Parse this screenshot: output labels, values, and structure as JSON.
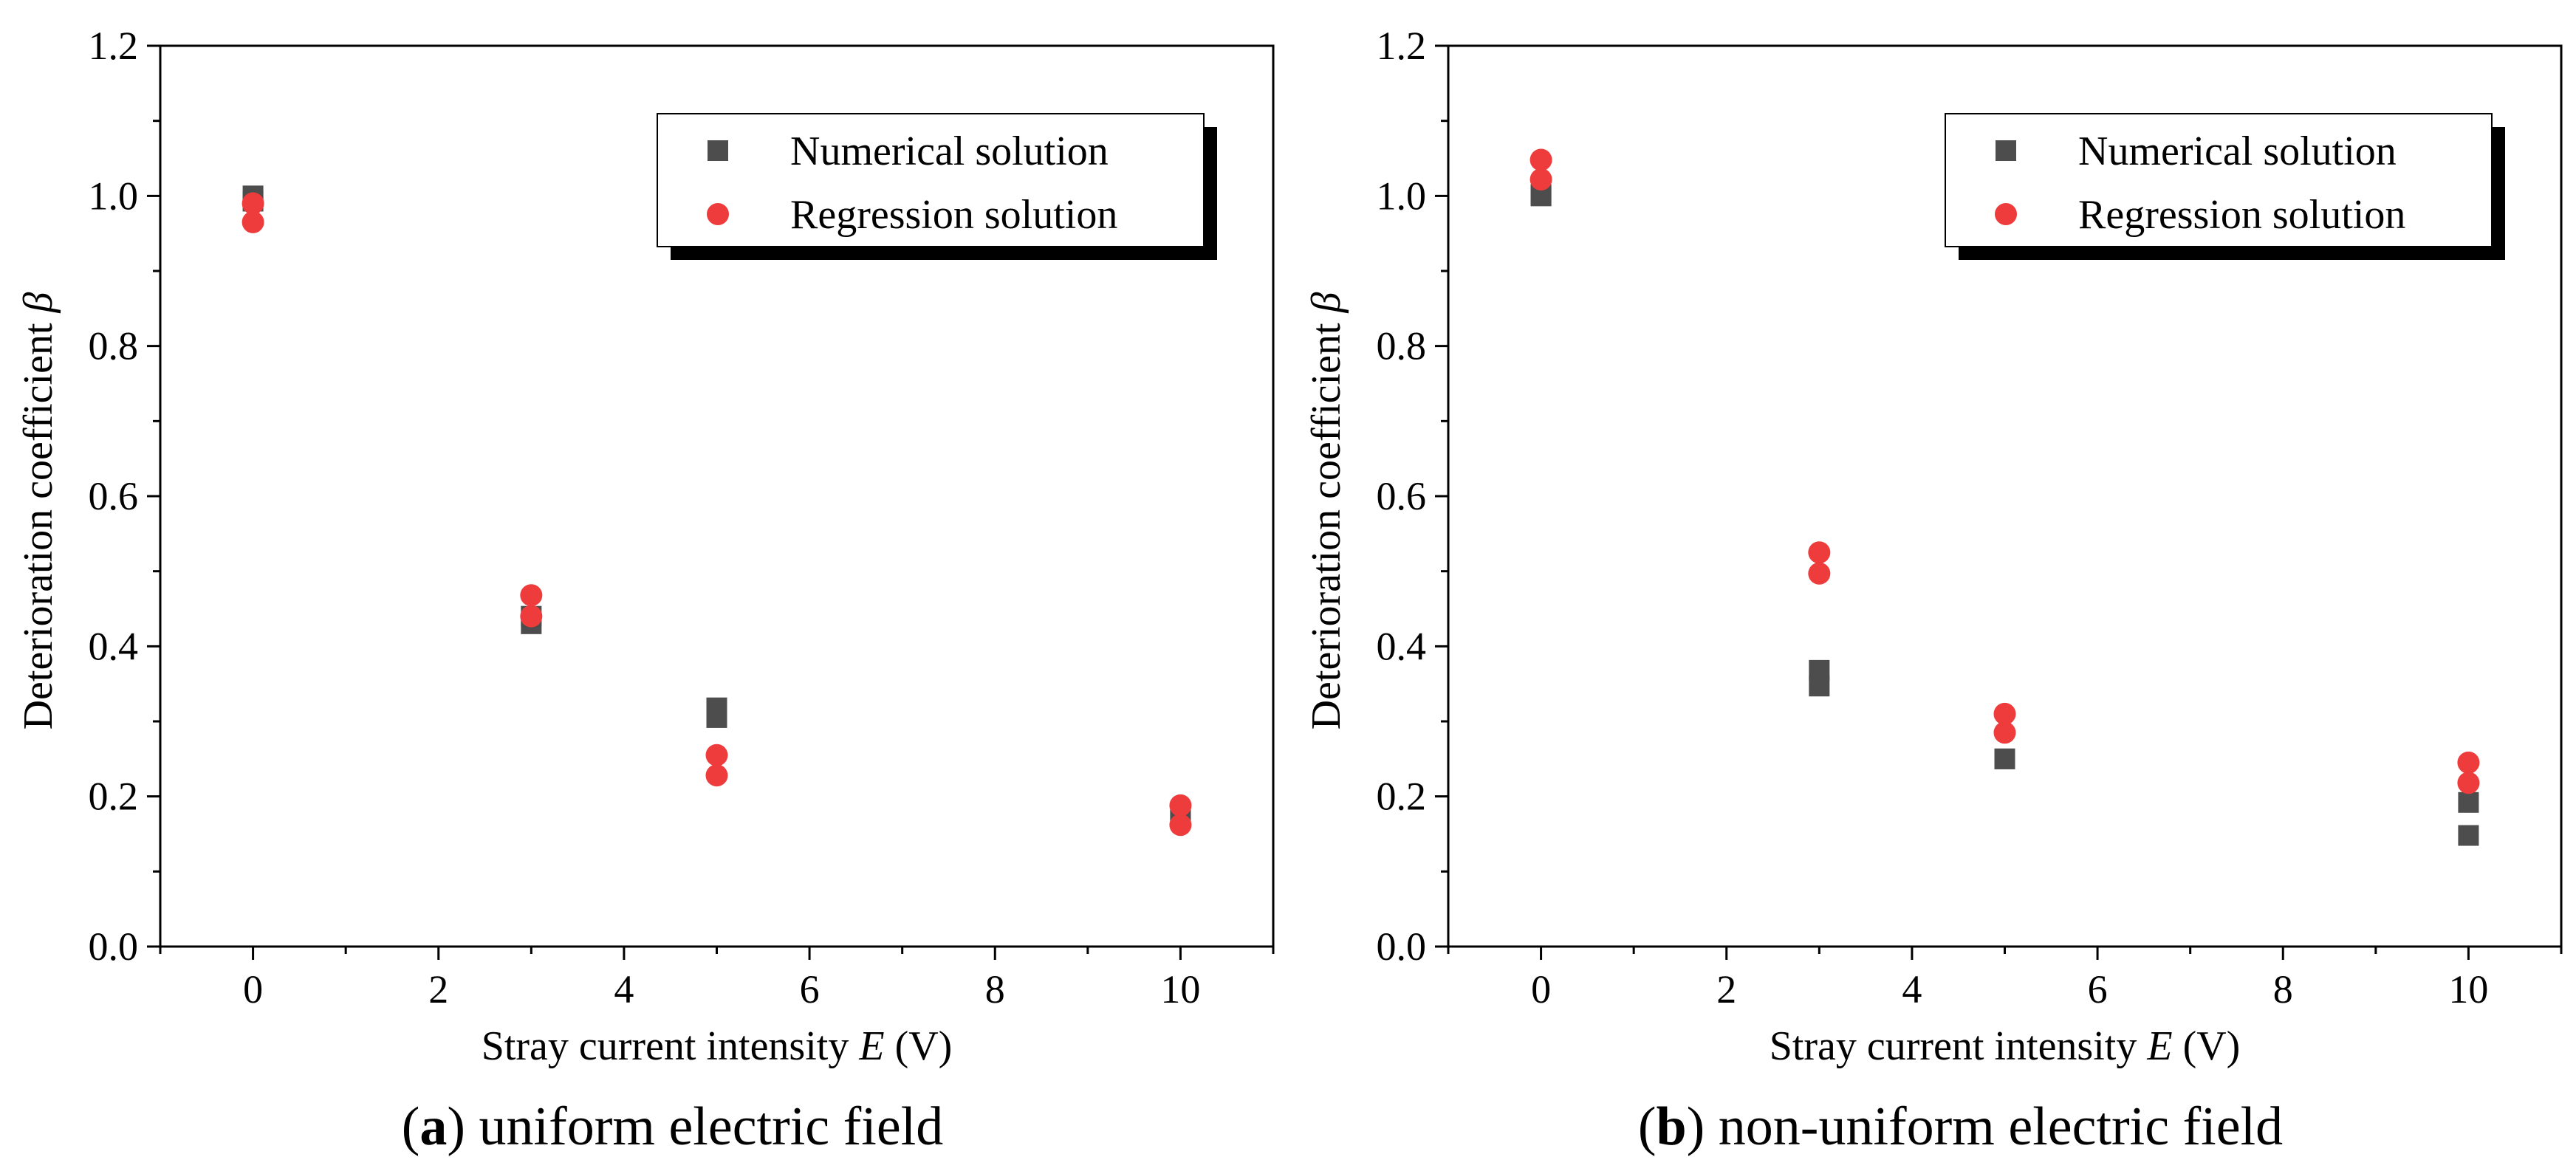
{
  "chart_data": [
    {
      "type": "scatter",
      "panel_letter": "a",
      "caption_text": " uniform electric field",
      "xlabel_prefix": "Stray current intensity ",
      "xlabel_var": "E",
      "xlabel_suffix": " (V)",
      "ylabel_prefix": "Deterioration coefficient ",
      "ylabel_var": "β",
      "xlim": [
        -1,
        11
      ],
      "ylim": [
        0,
        1.2
      ],
      "xticks": [
        "0",
        "2",
        "4",
        "6",
        "8",
        "10"
      ],
      "yticks": [
        "0.0",
        "0.2",
        "0.4",
        "0.6",
        "0.8",
        "1.0",
        "1.2"
      ],
      "legend_position": "top-right",
      "series": [
        {
          "name": "Numerical solution",
          "marker": "square",
          "color": "#4d4d4d",
          "points": [
            [
              0,
              1.0
            ],
            [
              0,
              0.993
            ],
            [
              3,
              0.43
            ],
            [
              3,
              0.44
            ],
            [
              5,
              0.318
            ],
            [
              5,
              0.305
            ],
            [
              10,
              0.178
            ],
            [
              10,
              0.172
            ]
          ]
        },
        {
          "name": "Regression solution",
          "marker": "circle",
          "color": "#ee3b3b",
          "points": [
            [
              0,
              0.99
            ],
            [
              0,
              0.965
            ],
            [
              3,
              0.468
            ],
            [
              3,
              0.44
            ],
            [
              5,
              0.255
            ],
            [
              5,
              0.228
            ],
            [
              10,
              0.188
            ],
            [
              10,
              0.162
            ]
          ]
        }
      ]
    },
    {
      "type": "scatter",
      "panel_letter": "b",
      "caption_text": " non-uniform electric field",
      "xlabel_prefix": "Stray current intensity ",
      "xlabel_var": "E",
      "xlabel_suffix": " (V)",
      "ylabel_prefix": "Deterioration coefficient ",
      "ylabel_var": "β",
      "xlim": [
        -1,
        11
      ],
      "ylim": [
        0,
        1.2
      ],
      "xticks": [
        "0",
        "2",
        "4",
        "6",
        "8",
        "10"
      ],
      "yticks": [
        "0.0",
        "0.2",
        "0.4",
        "0.6",
        "0.8",
        "1.0",
        "1.2"
      ],
      "legend_position": "top-right",
      "series": [
        {
          "name": "Numerical solution",
          "marker": "square",
          "color": "#4d4d4d",
          "points": [
            [
              0,
              1.0
            ],
            [
              0,
              1.002
            ],
            [
              3,
              0.368
            ],
            [
              3,
              0.347
            ],
            [
              5,
              0.25
            ],
            [
              5,
              0.25
            ],
            [
              10,
              0.192
            ],
            [
              10,
              0.148
            ]
          ]
        },
        {
          "name": "Regression solution",
          "marker": "circle",
          "color": "#ee3b3b",
          "points": [
            [
              0,
              1.048
            ],
            [
              0,
              1.022
            ],
            [
              3,
              0.525
            ],
            [
              3,
              0.497
            ],
            [
              5,
              0.31
            ],
            [
              5,
              0.285
            ],
            [
              10,
              0.245
            ],
            [
              10,
              0.218
            ]
          ]
        }
      ]
    }
  ]
}
